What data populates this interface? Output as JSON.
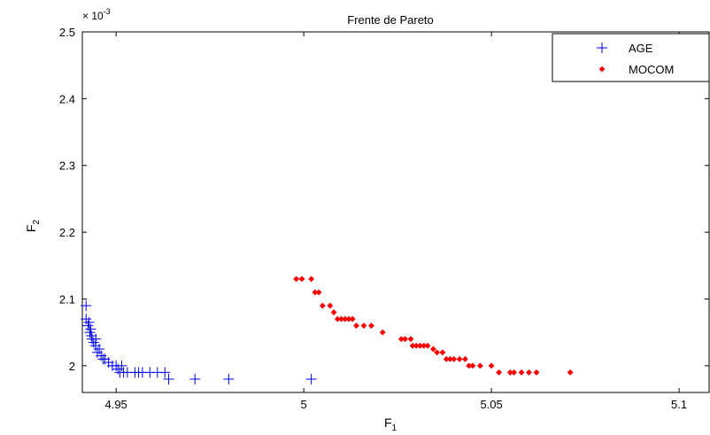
{
  "chart_data": {
    "type": "scatter",
    "title": "Frente de Pareto",
    "xlabel": {
      "main": "F",
      "sub": "1"
    },
    "ylabel": {
      "main": "F",
      "sub": "2"
    },
    "xlim": [
      4.941,
      5.108
    ],
    "ylim": [
      1.96,
      2.5
    ],
    "y_multiplier": {
      "base": "× 10",
      "exp": "-3"
    },
    "x_ticks": [
      "4.95",
      "5",
      "5.05",
      "5.1"
    ],
    "x_tick_values": [
      4.95,
      5.0,
      5.05,
      5.1
    ],
    "y_ticks": [
      "2",
      "2.1",
      "2.2",
      "2.3",
      "2.4",
      "2.5"
    ],
    "y_tick_values": [
      2.0,
      2.1,
      2.2,
      2.3,
      2.4,
      2.5
    ],
    "grid": false,
    "legend_position": "top-right",
    "series": [
      {
        "name": "AGE",
        "marker": "plus",
        "color": "#0000ff",
        "points": [
          [
            4.942,
            2.09
          ],
          [
            4.942,
            2.07
          ],
          [
            4.9425,
            2.06
          ],
          [
            4.9428,
            2.065
          ],
          [
            4.943,
            2.05
          ],
          [
            4.9432,
            2.055
          ],
          [
            4.9434,
            2.045
          ],
          [
            4.9436,
            2.04
          ],
          [
            4.944,
            2.035
          ],
          [
            4.9445,
            2.03
          ],
          [
            4.9446,
            2.04
          ],
          [
            4.945,
            2.02
          ],
          [
            4.9455,
            2.025
          ],
          [
            4.946,
            2.015
          ],
          [
            4.9465,
            2.01
          ],
          [
            4.947,
            2.01
          ],
          [
            4.948,
            2.005
          ],
          [
            4.949,
            2.0
          ],
          [
            4.95,
            2.0
          ],
          [
            4.9505,
            1.995
          ],
          [
            4.951,
            1.99
          ],
          [
            4.9515,
            2.0
          ],
          [
            4.952,
            1.99
          ],
          [
            4.953,
            1.99
          ],
          [
            4.955,
            1.99
          ],
          [
            4.956,
            1.99
          ],
          [
            4.957,
            1.99
          ],
          [
            4.959,
            1.99
          ],
          [
            4.961,
            1.99
          ],
          [
            4.963,
            1.99
          ],
          [
            4.964,
            1.98
          ],
          [
            4.971,
            1.98
          ],
          [
            4.98,
            1.98
          ],
          [
            5.002,
            1.98
          ]
        ]
      },
      {
        "name": "MOCOM",
        "marker": "dot",
        "color": "#ff0000",
        "points": [
          [
            4.998,
            2.13
          ],
          [
            4.9995,
            2.13
          ],
          [
            5.002,
            2.13
          ],
          [
            5.003,
            2.11
          ],
          [
            5.004,
            2.11
          ],
          [
            5.005,
            2.09
          ],
          [
            5.007,
            2.09
          ],
          [
            5.008,
            2.08
          ],
          [
            5.009,
            2.07
          ],
          [
            5.01,
            2.07
          ],
          [
            5.011,
            2.07
          ],
          [
            5.012,
            2.07
          ],
          [
            5.013,
            2.07
          ],
          [
            5.014,
            2.06
          ],
          [
            5.016,
            2.06
          ],
          [
            5.018,
            2.06
          ],
          [
            5.021,
            2.05
          ],
          [
            5.026,
            2.04
          ],
          [
            5.027,
            2.04
          ],
          [
            5.0285,
            2.04
          ],
          [
            5.029,
            2.03
          ],
          [
            5.03,
            2.03
          ],
          [
            5.031,
            2.03
          ],
          [
            5.032,
            2.03
          ],
          [
            5.033,
            2.03
          ],
          [
            5.0345,
            2.025
          ],
          [
            5.0355,
            2.02
          ],
          [
            5.037,
            2.02
          ],
          [
            5.038,
            2.01
          ],
          [
            5.039,
            2.01
          ],
          [
            5.04,
            2.01
          ],
          [
            5.0415,
            2.01
          ],
          [
            5.043,
            2.01
          ],
          [
            5.044,
            2.0
          ],
          [
            5.045,
            2.0
          ],
          [
            5.047,
            2.0
          ],
          [
            5.05,
            2.0
          ],
          [
            5.052,
            1.99
          ],
          [
            5.055,
            1.99
          ],
          [
            5.056,
            1.99
          ],
          [
            5.058,
            1.99
          ],
          [
            5.06,
            1.99
          ],
          [
            5.062,
            1.99
          ],
          [
            5.071,
            1.99
          ]
        ]
      }
    ]
  }
}
